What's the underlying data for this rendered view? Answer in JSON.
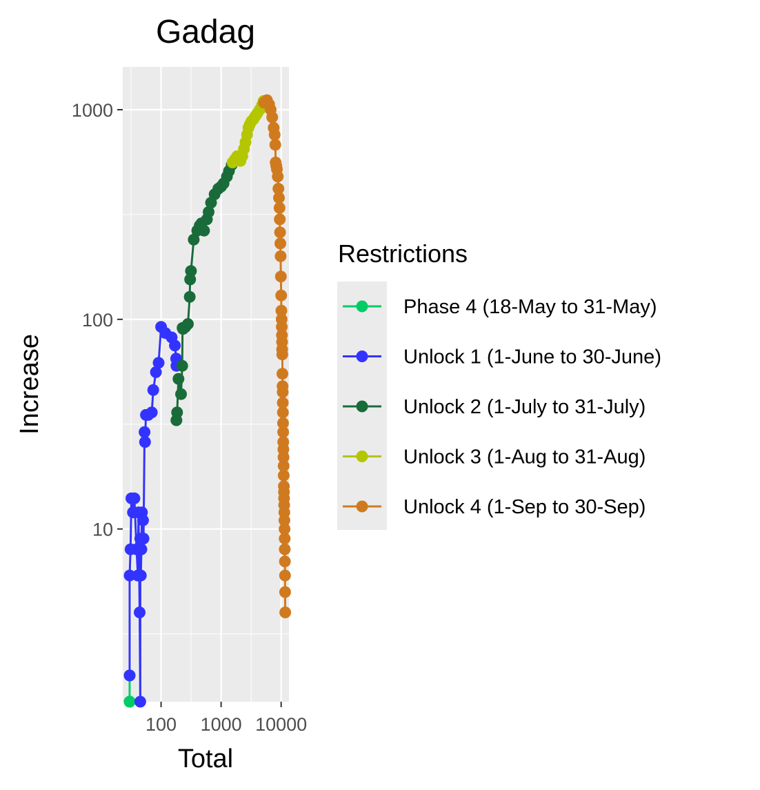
{
  "chart_data": {
    "type": "line",
    "title": "Gadag",
    "xlabel": "Total",
    "ylabel": "Increase",
    "x_scale": "log10",
    "y_scale": "log10",
    "xlim": [
      23,
      13500
    ],
    "ylim": [
      1.5,
      1600
    ],
    "x_ticks": [
      100,
      1000,
      10000
    ],
    "x_tick_labels": [
      "100",
      "1000",
      "10000"
    ],
    "y_ticks": [
      10,
      100,
      1000
    ],
    "y_tick_labels": [
      "10",
      "100",
      "1000"
    ],
    "grid": true,
    "legend": {
      "title": "Restrictions",
      "position": "right",
      "labels": [
        "Phase 4 (18-May to 31-May)",
        "Unlock 1 (1-June to 30-June)",
        "Unlock 2 (1-July to 31-July)",
        "Unlock 3 (1-Aug to 31-Aug)",
        "Unlock 4 (1-Sep to 30-Sep)"
      ]
    },
    "series": [
      {
        "name": "Phase 4 (18-May to 31-May)",
        "color": "#00CC66",
        "points": [
          [
            30,
            1
          ],
          [
            30,
            2
          ],
          [
            30,
            1.5
          ],
          [
            30,
            1
          ]
        ]
      },
      {
        "name": "Unlock 1 (1-June to 30-June)",
        "color": "#3333FF",
        "points": [
          [
            30,
            2
          ],
          [
            30,
            6
          ],
          [
            31,
            8
          ],
          [
            32,
            14
          ],
          [
            34,
            12
          ],
          [
            36,
            14
          ],
          [
            39,
            8
          ],
          [
            41,
            6
          ],
          [
            42,
            12
          ],
          [
            44,
            4
          ],
          [
            45,
            1
          ],
          [
            45,
            9
          ],
          [
            46,
            6
          ],
          [
            47,
            8
          ],
          [
            48,
            12
          ],
          [
            50,
            11
          ],
          [
            51,
            9
          ],
          [
            53,
            29
          ],
          [
            54,
            26
          ],
          [
            56,
            35
          ],
          [
            61,
            35
          ],
          [
            70,
            36
          ],
          [
            74,
            46
          ],
          [
            82,
            56
          ],
          [
            91,
            62
          ],
          [
            100,
            92
          ],
          [
            118,
            86
          ],
          [
            150,
            82
          ],
          [
            170,
            75
          ],
          [
            178,
            65
          ],
          [
            180,
            60
          ],
          [
            190,
            62
          ]
        ]
      },
      {
        "name": "Unlock 2 (1-July to 31-July)",
        "color": "#1A6B3A",
        "points": [
          [
            180,
            33
          ],
          [
            185,
            36
          ],
          [
            195,
            52
          ],
          [
            215,
            44
          ],
          [
            225,
            60
          ],
          [
            228,
            91
          ],
          [
            232,
            90
          ],
          [
            255,
            92
          ],
          [
            280,
            95
          ],
          [
            300,
            128
          ],
          [
            305,
            155
          ],
          [
            315,
            170
          ],
          [
            350,
            240
          ],
          [
            400,
            265
          ],
          [
            440,
            280
          ],
          [
            470,
            287
          ],
          [
            520,
            265
          ],
          [
            580,
            300
          ],
          [
            620,
            325
          ],
          [
            680,
            360
          ],
          [
            780,
            395
          ],
          [
            900,
            420
          ],
          [
            1000,
            430
          ],
          [
            1100,
            445
          ],
          [
            1250,
            480
          ],
          [
            1350,
            510
          ],
          [
            1500,
            545
          ]
        ]
      },
      {
        "name": "Unlock 3 (1-Aug to 31-Aug)",
        "color": "#B3C600",
        "points": [
          [
            1550,
            560
          ],
          [
            1700,
            580
          ],
          [
            1850,
            600
          ],
          [
            1950,
            580
          ],
          [
            2100,
            570
          ],
          [
            2250,
            600
          ],
          [
            2400,
            650
          ],
          [
            2550,
            700
          ],
          [
            2700,
            760
          ],
          [
            2850,
            820
          ],
          [
            3000,
            850
          ],
          [
            3200,
            880
          ],
          [
            3450,
            900
          ],
          [
            3700,
            930
          ],
          [
            4000,
            960
          ],
          [
            4400,
            1000
          ],
          [
            4800,
            1050
          ],
          [
            5100,
            1100
          ]
        ]
      },
      {
        "name": "Unlock 4 (1-Sep to 30-Sep)",
        "color": "#D07A20",
        "points": [
          [
            5200,
            1080
          ],
          [
            5800,
            1110
          ],
          [
            6300,
            1060
          ],
          [
            6700,
            1000
          ],
          [
            7100,
            920
          ],
          [
            7500,
            820
          ],
          [
            7800,
            760
          ],
          [
            8000,
            680
          ],
          [
            8100,
            560
          ],
          [
            8300,
            540
          ],
          [
            8500,
            520
          ],
          [
            8800,
            480
          ],
          [
            9000,
            420
          ],
          [
            9200,
            380
          ],
          [
            9400,
            340
          ],
          [
            9500,
            300
          ],
          [
            9600,
            260
          ],
          [
            9700,
            230
          ],
          [
            9800,
            200
          ],
          [
            9900,
            160
          ],
          [
            10000,
            130
          ],
          [
            10100,
            110
          ],
          [
            10200,
            100
          ],
          [
            10250,
            92
          ],
          [
            10300,
            84
          ],
          [
            10350,
            78
          ],
          [
            10400,
            72
          ],
          [
            10450,
            68
          ],
          [
            10500,
            55
          ],
          [
            10550,
            48
          ],
          [
            10600,
            45
          ],
          [
            10650,
            40
          ],
          [
            10700,
            36
          ],
          [
            10750,
            32
          ],
          [
            10800,
            29
          ],
          [
            10850,
            26
          ],
          [
            10900,
            24
          ],
          [
            10950,
            22
          ],
          [
            11000,
            20
          ],
          [
            11050,
            18
          ],
          [
            11100,
            16
          ],
          [
            11150,
            15
          ],
          [
            11200,
            14
          ],
          [
            11250,
            13
          ],
          [
            11300,
            12
          ],
          [
            11350,
            11
          ],
          [
            11400,
            10
          ],
          [
            11450,
            9
          ],
          [
            11500,
            8
          ],
          [
            11550,
            7
          ],
          [
            11600,
            6
          ],
          [
            11650,
            5
          ],
          [
            11700,
            4
          ]
        ]
      }
    ]
  }
}
